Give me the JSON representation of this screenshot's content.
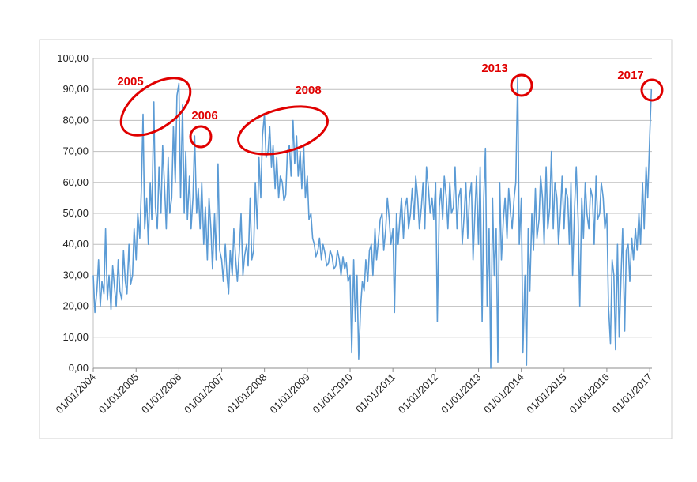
{
  "chart_data": {
    "type": "line",
    "xlim": [
      "2004-01-01",
      "2017-01-20"
    ],
    "xticks": [
      {
        "value": "2004-01-01",
        "label": "01/01/2004"
      },
      {
        "value": "2005-01-01",
        "label": "01/01/2005"
      },
      {
        "value": "2006-01-01",
        "label": "01/01/2006"
      },
      {
        "value": "2007-01-01",
        "label": "01/01/2007"
      },
      {
        "value": "2008-01-01",
        "label": "01/01/2008"
      },
      {
        "value": "2009-01-01",
        "label": "01/01/2009"
      },
      {
        "value": "2010-01-01",
        "label": "01/01/2010"
      },
      {
        "value": "2011-01-01",
        "label": "01/01/2011"
      },
      {
        "value": "2012-01-01",
        "label": "01/01/2012"
      },
      {
        "value": "2013-01-01",
        "label": "01/01/2013"
      },
      {
        "value": "2014-01-01",
        "label": "01/01/2014"
      },
      {
        "value": "2015-01-01",
        "label": "01/01/2015"
      },
      {
        "value": "2016-01-01",
        "label": "01/01/2016"
      },
      {
        "value": "2017-01-01",
        "label": "01/01/2017"
      }
    ],
    "ylim": [
      0,
      100
    ],
    "yticks": [
      {
        "value": 0,
        "label": "0,00"
      },
      {
        "value": 10,
        "label": "10,00"
      },
      {
        "value": 20,
        "label": "20,00"
      },
      {
        "value": 30,
        "label": "30,00"
      },
      {
        "value": 40,
        "label": "40,00"
      },
      {
        "value": 50,
        "label": "50,00"
      },
      {
        "value": 60,
        "label": "60,00"
      },
      {
        "value": 70,
        "label": "70,00"
      },
      {
        "value": 80,
        "label": "80,00"
      },
      {
        "value": 90,
        "label": "90,00"
      },
      {
        "value": 100,
        "label": "100,00"
      }
    ],
    "grid": true,
    "annotations": [
      "2005",
      "2006",
      "2008",
      "2013",
      "2017"
    ],
    "annotation_color": "#e00000",
    "x": [
      "2004-01-01",
      "2004-01-15",
      "2004-02-01",
      "2004-02-15",
      "2004-03-01",
      "2004-03-15",
      "2004-04-01",
      "2004-04-15",
      "2004-05-01",
      "2004-05-15",
      "2004-06-01",
      "2004-06-15",
      "2004-07-01",
      "2004-07-15",
      "2004-08-01",
      "2004-08-15",
      "2004-09-01",
      "2004-09-15",
      "2004-10-01",
      "2004-10-15",
      "2004-11-01",
      "2004-11-15",
      "2004-12-01",
      "2004-12-15",
      "2005-01-01",
      "2005-01-15",
      "2005-02-01",
      "2005-02-15",
      "2005-03-01",
      "2005-03-15",
      "2005-04-01",
      "2005-04-15",
      "2005-05-01",
      "2005-05-15",
      "2005-06-01",
      "2005-06-15",
      "2005-07-01",
      "2005-07-15",
      "2005-08-01",
      "2005-08-15",
      "2005-09-01",
      "2005-09-15",
      "2005-10-01",
      "2005-10-15",
      "2005-11-01",
      "2005-11-15",
      "2005-12-01",
      "2005-12-15",
      "2006-01-01",
      "2006-01-15",
      "2006-02-01",
      "2006-02-15",
      "2006-03-01",
      "2006-03-15",
      "2006-04-01",
      "2006-04-15",
      "2006-05-01",
      "2006-05-15",
      "2006-06-01",
      "2006-06-15",
      "2006-07-01",
      "2006-07-15",
      "2006-08-01",
      "2006-08-15",
      "2006-09-01",
      "2006-09-15",
      "2006-10-01",
      "2006-10-15",
      "2006-11-01",
      "2006-11-15",
      "2006-12-01",
      "2006-12-15",
      "2007-01-01",
      "2007-01-15",
      "2007-02-01",
      "2007-02-15",
      "2007-03-01",
      "2007-03-15",
      "2007-04-01",
      "2007-04-15",
      "2007-05-01",
      "2007-05-15",
      "2007-06-01",
      "2007-06-15",
      "2007-07-01",
      "2007-07-15",
      "2007-08-01",
      "2007-08-15",
      "2007-09-01",
      "2007-09-15",
      "2007-10-01",
      "2007-10-15",
      "2007-11-01",
      "2007-11-15",
      "2007-12-01",
      "2007-12-15",
      "2008-01-01",
      "2008-01-15",
      "2008-02-01",
      "2008-02-15",
      "2008-03-01",
      "2008-03-15",
      "2008-04-01",
      "2008-04-15",
      "2008-05-01",
      "2008-05-15",
      "2008-06-01",
      "2008-06-15",
      "2008-07-01",
      "2008-07-15",
      "2008-08-01",
      "2008-08-15",
      "2008-09-01",
      "2008-09-15",
      "2008-10-01",
      "2008-10-15",
      "2008-11-01",
      "2008-11-15",
      "2008-12-01",
      "2008-12-15",
      "2009-01-01",
      "2009-01-15",
      "2009-02-01",
      "2009-02-15",
      "2009-03-01",
      "2009-03-15",
      "2009-04-01",
      "2009-04-15",
      "2009-05-01",
      "2009-05-15",
      "2009-06-01",
      "2009-06-15",
      "2009-07-01",
      "2009-07-15",
      "2009-08-01",
      "2009-08-15",
      "2009-09-01",
      "2009-09-15",
      "2009-10-01",
      "2009-10-15",
      "2009-11-01",
      "2009-11-15",
      "2009-12-01",
      "2009-12-15",
      "2010-01-01",
      "2010-01-15",
      "2010-02-01",
      "2010-02-15",
      "2010-03-01",
      "2010-03-15",
      "2010-04-01",
      "2010-04-15",
      "2010-05-01",
      "2010-05-15",
      "2010-06-01",
      "2010-06-15",
      "2010-07-01",
      "2010-07-15",
      "2010-08-01",
      "2010-08-15",
      "2010-09-01",
      "2010-09-15",
      "2010-10-01",
      "2010-10-15",
      "2010-11-01",
      "2010-11-15",
      "2010-12-01",
      "2010-12-15",
      "2011-01-01",
      "2011-01-15",
      "2011-02-01",
      "2011-02-15",
      "2011-03-01",
      "2011-03-15",
      "2011-04-01",
      "2011-04-15",
      "2011-05-01",
      "2011-05-15",
      "2011-06-01",
      "2011-06-15",
      "2011-07-01",
      "2011-07-15",
      "2011-08-01",
      "2011-08-15",
      "2011-09-01",
      "2011-09-15",
      "2011-10-01",
      "2011-10-15",
      "2011-11-01",
      "2011-11-15",
      "2011-12-01",
      "2011-12-15",
      "2012-01-01",
      "2012-01-15",
      "2012-02-01",
      "2012-02-15",
      "2012-03-01",
      "2012-03-15",
      "2012-04-01",
      "2012-04-15",
      "2012-05-01",
      "2012-05-15",
      "2012-06-01",
      "2012-06-15",
      "2012-07-01",
      "2012-07-15",
      "2012-08-01",
      "2012-08-15",
      "2012-09-01",
      "2012-09-15",
      "2012-10-01",
      "2012-10-15",
      "2012-11-01",
      "2012-11-15",
      "2012-12-01",
      "2012-12-15",
      "2013-01-01",
      "2013-01-15",
      "2013-02-01",
      "2013-02-15",
      "2013-03-01",
      "2013-03-15",
      "2013-04-01",
      "2013-04-15",
      "2013-05-01",
      "2013-05-15",
      "2013-06-01",
      "2013-06-15",
      "2013-07-01",
      "2013-07-15",
      "2013-08-01",
      "2013-08-15",
      "2013-09-01",
      "2013-09-15",
      "2013-10-01",
      "2013-10-15",
      "2013-11-01",
      "2013-11-15",
      "2013-12-01",
      "2013-12-15",
      "2014-01-01",
      "2014-01-15",
      "2014-02-01",
      "2014-02-15",
      "2014-03-01",
      "2014-03-15",
      "2014-04-01",
      "2014-04-15",
      "2014-05-01",
      "2014-05-15",
      "2014-06-01",
      "2014-06-15",
      "2014-07-01",
      "2014-07-15",
      "2014-08-01",
      "2014-08-15",
      "2014-09-01",
      "2014-09-15",
      "2014-10-01",
      "2014-10-15",
      "2014-11-01",
      "2014-11-15",
      "2014-12-01",
      "2014-12-15",
      "2015-01-01",
      "2015-01-15",
      "2015-02-01",
      "2015-02-15",
      "2015-03-01",
      "2015-03-15",
      "2015-04-01",
      "2015-04-15",
      "2015-05-01",
      "2015-05-15",
      "2015-06-01",
      "2015-06-15",
      "2015-07-01",
      "2015-07-15",
      "2015-08-01",
      "2015-08-15",
      "2015-09-01",
      "2015-09-15",
      "2015-10-01",
      "2015-10-15",
      "2015-11-01",
      "2015-11-15",
      "2015-12-01",
      "2015-12-15",
      "2016-01-01",
      "2016-01-15",
      "2016-02-01",
      "2016-02-15",
      "2016-03-01",
      "2016-03-15",
      "2016-04-01",
      "2016-04-15",
      "2016-05-01",
      "2016-05-15",
      "2016-06-01",
      "2016-06-15",
      "2016-07-01",
      "2016-07-15",
      "2016-08-01",
      "2016-08-15",
      "2016-09-01",
      "2016-09-15",
      "2016-10-01",
      "2016-10-15",
      "2016-11-01",
      "2016-11-15",
      "2016-12-01",
      "2016-12-15",
      "2017-01-01",
      "2017-01-15"
    ],
    "series": [
      {
        "color": "#5b9bd5",
        "values": [
          30,
          18,
          25,
          35,
          20,
          28,
          24,
          45,
          22,
          30,
          19,
          33,
          26,
          20,
          35,
          25,
          22,
          38,
          28,
          24,
          40,
          27,
          30,
          45,
          35,
          50,
          42,
          58,
          82,
          45,
          55,
          40,
          60,
          48,
          86,
          52,
          45,
          65,
          50,
          72,
          58,
          45,
          68,
          50,
          55,
          78,
          60,
          88,
          92,
          55,
          85,
          50,
          70,
          48,
          62,
          45,
          55,
          75,
          50,
          58,
          45,
          60,
          40,
          52,
          35,
          55,
          45,
          32,
          50,
          35,
          66,
          38,
          35,
          28,
          40,
          30,
          24,
          38,
          30,
          45,
          35,
          28,
          38,
          50,
          30,
          36,
          40,
          33,
          55,
          35,
          38,
          60,
          45,
          68,
          55,
          75,
          82,
          68,
          70,
          78,
          65,
          72,
          58,
          68,
          55,
          62,
          60,
          54,
          56,
          70,
          72,
          62,
          80,
          66,
          75,
          62,
          70,
          58,
          72,
          55,
          62,
          48,
          50,
          42,
          40,
          36,
          38,
          42,
          35,
          40,
          37,
          33,
          34,
          38,
          36,
          32,
          33,
          38,
          35,
          30,
          36,
          32,
          34,
          28,
          30,
          5,
          35,
          15,
          30,
          3,
          20,
          28,
          25,
          35,
          28,
          38,
          40,
          30,
          45,
          35,
          42,
          48,
          50,
          38,
          45,
          55,
          48,
          40,
          45,
          18,
          50,
          40,
          48,
          55,
          42,
          52,
          55,
          45,
          50,
          58,
          48,
          62,
          55,
          45,
          52,
          60,
          45,
          65,
          58,
          50,
          55,
          48,
          60,
          15,
          52,
          58,
          48,
          62,
          55,
          45,
          60,
          50,
          52,
          65,
          45,
          55,
          58,
          40,
          50,
          60,
          42,
          55,
          60,
          35,
          50,
          62,
          40,
          65,
          15,
          55,
          71,
          20,
          45,
          0,
          55,
          30,
          45,
          2,
          60,
          35,
          48,
          55,
          42,
          58,
          50,
          45,
          55,
          60,
          94,
          40,
          55,
          5,
          30,
          1,
          45,
          25,
          50,
          38,
          58,
          42,
          48,
          62,
          55,
          40,
          65,
          45,
          52,
          70,
          45,
          60,
          55,
          40,
          50,
          62,
          45,
          58,
          55,
          40,
          60,
          30,
          52,
          65,
          48,
          20,
          55,
          42,
          60,
          50,
          45,
          58,
          55,
          40,
          62,
          48,
          50,
          60,
          55,
          45,
          50,
          20,
          8,
          35,
          30,
          6,
          40,
          10,
          30,
          45,
          12,
          38,
          40,
          28,
          42,
          35,
          45,
          38,
          50,
          40,
          60,
          45,
          65,
          55,
          75,
          90
        ]
      }
    ]
  }
}
